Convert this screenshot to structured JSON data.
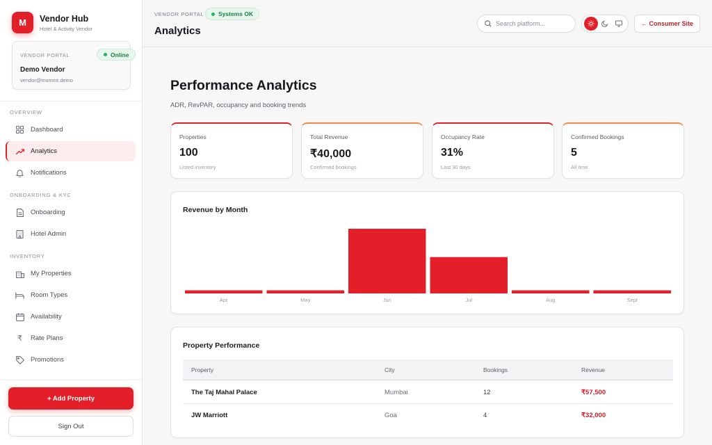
{
  "brand": {
    "initial": "M",
    "title": "Vendor Hub",
    "subtitle": "Hotel & Activity Vendor"
  },
  "portal_card": {
    "label": "VENDOR PORTAL",
    "status": "Online",
    "vendor_name": "Demo Vendor",
    "vendor_email": "vendor@mxmmt.demo"
  },
  "sidebar": {
    "sections": [
      "OVERVIEW",
      "ONBOARDING & KYC",
      "INVENTORY"
    ],
    "items": [
      {
        "label": "Dashboard",
        "icon": "grid-icon"
      },
      {
        "label": "Analytics",
        "icon": "trending-up-icon",
        "active": true
      },
      {
        "label": "Notifications",
        "icon": "bell-icon"
      },
      {
        "label": "Onboarding",
        "icon": "document-icon"
      },
      {
        "label": "Hotel Admin",
        "icon": "building-icon"
      },
      {
        "label": "My Properties",
        "icon": "building-icon"
      },
      {
        "label": "Room Types",
        "icon": "bed-icon"
      },
      {
        "label": "Availability",
        "icon": "calendar-icon"
      },
      {
        "label": "Rate Plans",
        "icon": "rupee-icon"
      },
      {
        "label": "Promotions",
        "icon": "tag-icon"
      }
    ],
    "add_property": "+ Add Property",
    "sign_out": "Sign Out"
  },
  "header": {
    "portal_label": "VENDOR PORTAL",
    "system_status": "Systems OK",
    "title": "Analytics",
    "search_placeholder": "Search platform...",
    "theme_options": [
      "sun-icon",
      "moon-icon",
      "monitor-icon"
    ],
    "consumer_site": "← Consumer Site"
  },
  "page": {
    "title": "Performance Analytics",
    "subtitle": "ADR, RevPAR, occupancy and booking trends"
  },
  "stats": [
    {
      "label": "Properties",
      "value": "100",
      "note": "Listed inventory"
    },
    {
      "label": "Total Revenue",
      "value": "₹40,000",
      "note": "Confirmed bookings"
    },
    {
      "label": "Occupancy Rate",
      "value": "31%",
      "note": "Last 30 days"
    },
    {
      "label": "Confirmed Bookings",
      "value": "5",
      "note": "All time"
    }
  ],
  "revenue_chart": {
    "title": "Revenue by Month"
  },
  "chart_data": {
    "type": "bar",
    "title": "Revenue by Month",
    "categories": [
      "Apr",
      "May",
      "Jun",
      "Jul",
      "Aug",
      "Sept"
    ],
    "values": [
      0,
      0,
      40000,
      22500,
      0,
      0
    ],
    "ylim": [
      0,
      40000
    ],
    "xlabel": "",
    "ylabel": "",
    "grid": false,
    "color": "#e3202a"
  },
  "property_table": {
    "title": "Property Performance",
    "columns": [
      "Property",
      "City",
      "Bookings",
      "Revenue"
    ],
    "rows": [
      [
        "The Taj Mahal Palace",
        "Mumbai",
        "12",
        "₹57,500"
      ],
      [
        "JW Marriott",
        "Goa",
        "4",
        "₹32,000"
      ]
    ]
  },
  "colors": {
    "accent": "#e3202a",
    "success": "#1b7f43",
    "orange_accent": "#f2894b"
  }
}
